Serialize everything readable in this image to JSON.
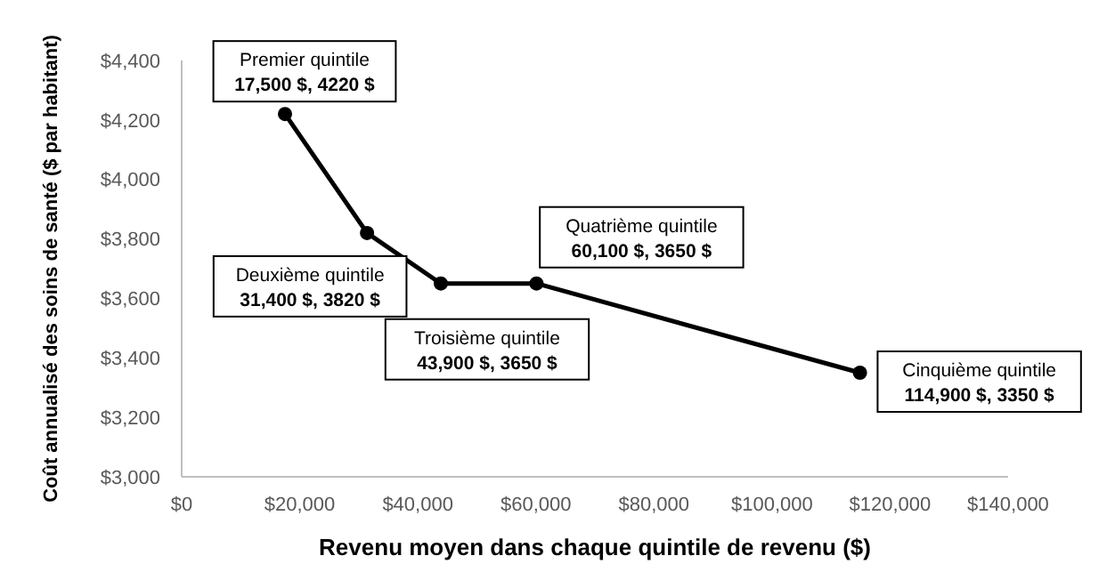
{
  "chart_data": {
    "type": "line",
    "xlabel": "Revenu moyen dans chaque quintile de revenu ($)",
    "ylabel": "Coût annualisé des soins de santé ($ par habitant)",
    "x": [
      17500,
      31400,
      43900,
      60100,
      114900
    ],
    "series": [
      {
        "color": "#000000",
        "values": [
          4220,
          3820,
          3650,
          3650,
          3350
        ]
      }
    ],
    "xlim": [
      0,
      140000
    ],
    "xticks": [
      {
        "value": 0,
        "label": "$0"
      },
      {
        "value": 20000,
        "label": "$20,000"
      },
      {
        "value": 40000,
        "label": "$40,000"
      },
      {
        "value": 60000,
        "label": "$60,000"
      },
      {
        "value": 80000,
        "label": "$80,000"
      },
      {
        "value": 100000,
        "label": "$100,000"
      },
      {
        "value": 120000,
        "label": "$120,000"
      },
      {
        "value": 140000,
        "label": "$140,000"
      }
    ],
    "ylim": [
      3000,
      4400
    ],
    "yticks": [
      {
        "value": 3000,
        "label": "$3,000"
      },
      {
        "value": 3200,
        "label": "$3,200"
      },
      {
        "value": 3400,
        "label": "$3,400"
      },
      {
        "value": 3600,
        "label": "$3,600"
      },
      {
        "value": 3800,
        "label": "$3,800"
      },
      {
        "value": 4000,
        "label": "$4,000"
      },
      {
        "value": 4200,
        "label": "$4,200"
      },
      {
        "value": 4400,
        "label": "$4,400"
      }
    ],
    "grid": false,
    "marker": "circle",
    "line_style": "solid",
    "annotations": [
      {
        "text": "Premier quintile\n17,500 $, 4220 $",
        "x": 17500,
        "y": 4220
      },
      {
        "text": "Deuxième quintile\n31,400 $, 3820 $",
        "x": 31400,
        "y": 3820
      },
      {
        "text": "Troisième quintile\n43,900 $, 3650 $",
        "x": 43900,
        "y": 3650
      },
      {
        "text": "Quatrième quintile\n60,100 $, 3650 $",
        "x": 60100,
        "y": 3650
      },
      {
        "text": "Cinquième quintile\n114,900 $, 3350 $",
        "x": 114900,
        "y": 3350
      }
    ]
  }
}
